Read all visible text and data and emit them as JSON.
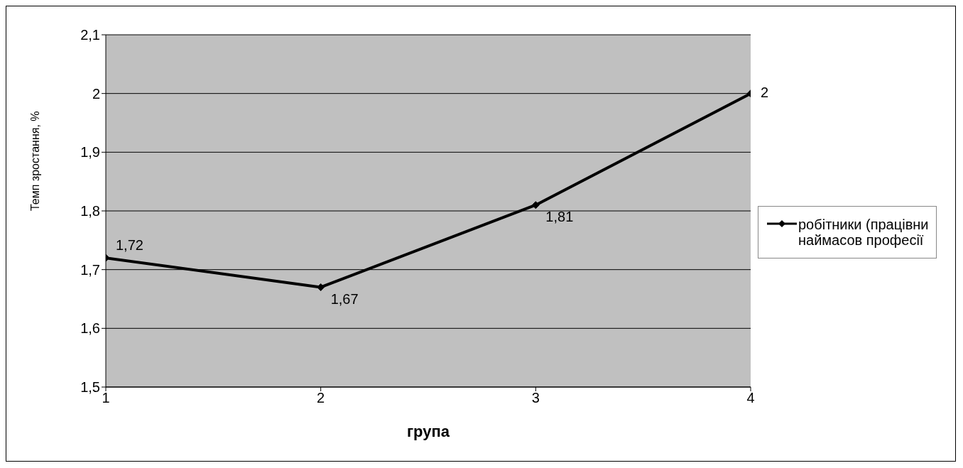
{
  "chart_data": {
    "type": "line",
    "xlabel": "група",
    "ylabel": "Темп зростання, %",
    "x": [
      1,
      2,
      3,
      4
    ],
    "series": [
      {
        "name": "робітники (працівни наймасов професії",
        "color": "#000000",
        "values": [
          1.72,
          1.67,
          1.81,
          2
        ],
        "value_labels": [
          "1,72",
          "1,67",
          "1,81",
          "2"
        ]
      }
    ],
    "xlim": [
      1,
      4
    ],
    "xticks": [
      1,
      2,
      3,
      4
    ],
    "ylim": [
      1.5,
      2.1
    ],
    "yticks": [
      {
        "value": 1.5,
        "label": "1,5"
      },
      {
        "value": 1.6,
        "label": "1,6"
      },
      {
        "value": 1.7,
        "label": "1,7"
      },
      {
        "value": 1.8,
        "label": "1,8"
      },
      {
        "value": 1.9,
        "label": "1,9"
      },
      {
        "value": 2,
        "label": "2"
      },
      {
        "value": 2.1,
        "label": "2,1"
      }
    ],
    "grid": "y",
    "legend": "right",
    "marker": "diamond",
    "line_style": "solid"
  }
}
